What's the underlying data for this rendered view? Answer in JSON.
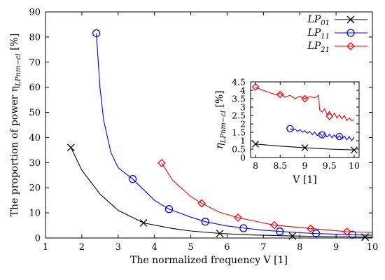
{
  "chart_data": [
    {
      "type": "line",
      "xlabel": "The normalized frequency V [1]",
      "ylabel": "The proportion of power η_{LPnm-cl} [%]",
      "ylabel_main": "The proportion of power η",
      "ylabel_sub": "LPnm−cl",
      "ylabel_unit": " [%]",
      "xlim": [
        1,
        10
      ],
      "ylim": [
        0,
        90
      ],
      "xticks": [
        1,
        2,
        3,
        4,
        5,
        6,
        7,
        8,
        9,
        10
      ],
      "yticks": [
        0,
        10,
        20,
        30,
        40,
        50,
        60,
        70,
        80,
        90
      ],
      "grid": false,
      "legend_position": "top-right",
      "series": [
        {
          "name": "LP01",
          "name_main": "LP",
          "name_sub": "01",
          "color": "#000000",
          "marker": "cross",
          "x": [
            1.7,
            2.0,
            2.5,
            3.0,
            3.7,
            4.5,
            5.0,
            5.8,
            6.5,
            7.0,
            7.8,
            8.5,
            9.0,
            9.8,
            10.0
          ],
          "y": [
            36.0,
            27.0,
            17.5,
            11.0,
            6.0,
            3.8,
            2.8,
            1.8,
            1.3,
            1.1,
            0.8,
            0.6,
            0.5,
            0.35,
            0.3
          ],
          "markers_x": [
            1.7,
            3.7,
            5.8,
            7.8,
            9.8
          ],
          "markers_y": [
            36.0,
            6.0,
            1.8,
            0.8,
            0.35
          ]
        },
        {
          "name": "LP11",
          "name_main": "LP",
          "name_sub": "11",
          "color": "#0000ff",
          "marker": "circle",
          "x": [
            2.4,
            2.5,
            2.6,
            2.8,
            3.0,
            3.4,
            4.0,
            4.4,
            5.0,
            5.4,
            6.0,
            6.5,
            7.0,
            7.5,
            8.0,
            8.4,
            9.0,
            9.4,
            10.0
          ],
          "y": [
            81.5,
            60.0,
            47.0,
            34.0,
            28.0,
            23.5,
            15.0,
            11.5,
            8.3,
            6.5,
            4.8,
            3.9,
            3.1,
            2.6,
            2.1,
            1.8,
            1.5,
            1.3,
            1.1
          ],
          "markers_x": [
            2.4,
            3.4,
            4.4,
            5.4,
            6.45,
            7.45,
            8.45,
            9.45
          ],
          "markers_y": [
            81.5,
            23.5,
            11.5,
            6.5,
            3.9,
            2.6,
            1.8,
            1.3
          ]
        },
        {
          "name": "LP21",
          "name_main": "LP",
          "name_sub": "21",
          "color": "#ff0000",
          "marker": "diamond",
          "x": [
            4.2,
            4.5,
            5.0,
            5.3,
            5.8,
            6.3,
            7.0,
            7.3,
            8.0,
            8.3,
            9.0,
            9.3,
            10.0
          ],
          "y": [
            29.8,
            23.0,
            16.5,
            13.8,
            10.2,
            8.1,
            6.0,
            5.1,
            4.2,
            3.8,
            2.9,
            2.5,
            2.2
          ],
          "markers_x": [
            4.2,
            5.3,
            6.3,
            7.3,
            8.3,
            9.3
          ],
          "markers_y": [
            29.8,
            13.8,
            8.1,
            5.1,
            3.8,
            2.5
          ]
        }
      ]
    },
    {
      "type": "line",
      "xlabel": "V [1]",
      "ylabel": "η_{LPnm-cl} [%]",
      "ylabel_main": "η",
      "ylabel_sub": "LPnm−cl",
      "ylabel_unit": " [%]",
      "xlim": [
        7.9,
        10.1
      ],
      "ylim": [
        0,
        4.5
      ],
      "xticks": [
        8,
        8.5,
        9,
        9.5,
        10
      ],
      "yticks": [
        0,
        0.5,
        1,
        1.5,
        2,
        2.5,
        3,
        3.5,
        4,
        4.5
      ],
      "grid": false,
      "series": [
        {
          "name": "LP01",
          "color": "#000000",
          "marker": "cross",
          "x": [
            8.0,
            8.5,
            9.0,
            9.5,
            10.0
          ],
          "y": [
            0.8,
            0.68,
            0.58,
            0.5,
            0.45
          ],
          "markers_x": [
            8.0,
            9.0,
            10.0
          ],
          "markers_y": [
            0.8,
            0.58,
            0.45
          ]
        },
        {
          "name": "LP11",
          "color": "#0000ff",
          "marker": "circle",
          "x": [
            8.7,
            8.75,
            8.8,
            8.85,
            8.9,
            8.95,
            9.0,
            9.05,
            9.1,
            9.15,
            9.2,
            9.25,
            9.3,
            9.35,
            9.4,
            9.45,
            9.5,
            9.55,
            9.6,
            9.65,
            9.7,
            9.75,
            9.8,
            9.85,
            9.9,
            9.95,
            10.0
          ],
          "y": [
            1.72,
            1.62,
            1.7,
            1.55,
            1.66,
            1.5,
            1.6,
            1.44,
            1.56,
            1.36,
            1.52,
            1.3,
            1.48,
            1.25,
            1.43,
            1.22,
            1.38,
            1.18,
            1.35,
            1.14,
            1.3,
            1.1,
            1.28,
            1.05,
            1.25,
            1.0,
            1.22
          ],
          "markers_x": [
            8.7,
            9.35,
            9.7
          ],
          "markers_y": [
            1.72,
            1.35,
            1.25
          ]
        },
        {
          "name": "LP21",
          "color": "#ff0000",
          "marker": "diamond",
          "x": [
            8.0,
            8.1,
            8.2,
            8.3,
            8.4,
            8.5,
            8.6,
            8.7,
            8.8,
            8.9,
            9.0,
            9.1,
            9.2,
            9.28,
            9.3,
            9.35,
            9.4,
            9.45,
            9.5,
            9.55,
            9.6,
            9.65,
            9.7,
            9.75,
            9.8,
            9.85,
            9.9,
            9.95,
            10.0
          ],
          "y": [
            4.2,
            4.05,
            3.95,
            3.85,
            3.75,
            3.8,
            3.6,
            3.7,
            3.5,
            3.65,
            3.5,
            3.62,
            3.55,
            3.7,
            2.85,
            2.7,
            2.9,
            2.55,
            2.75,
            2.45,
            2.65,
            2.35,
            2.55,
            2.3,
            2.5,
            2.2,
            2.35,
            2.2,
            2.25
          ],
          "markers_x": [
            8.0,
            8.5,
            9.0,
            9.5
          ],
          "markers_y": [
            4.2,
            3.75,
            3.5,
            2.45
          ]
        }
      ]
    }
  ]
}
